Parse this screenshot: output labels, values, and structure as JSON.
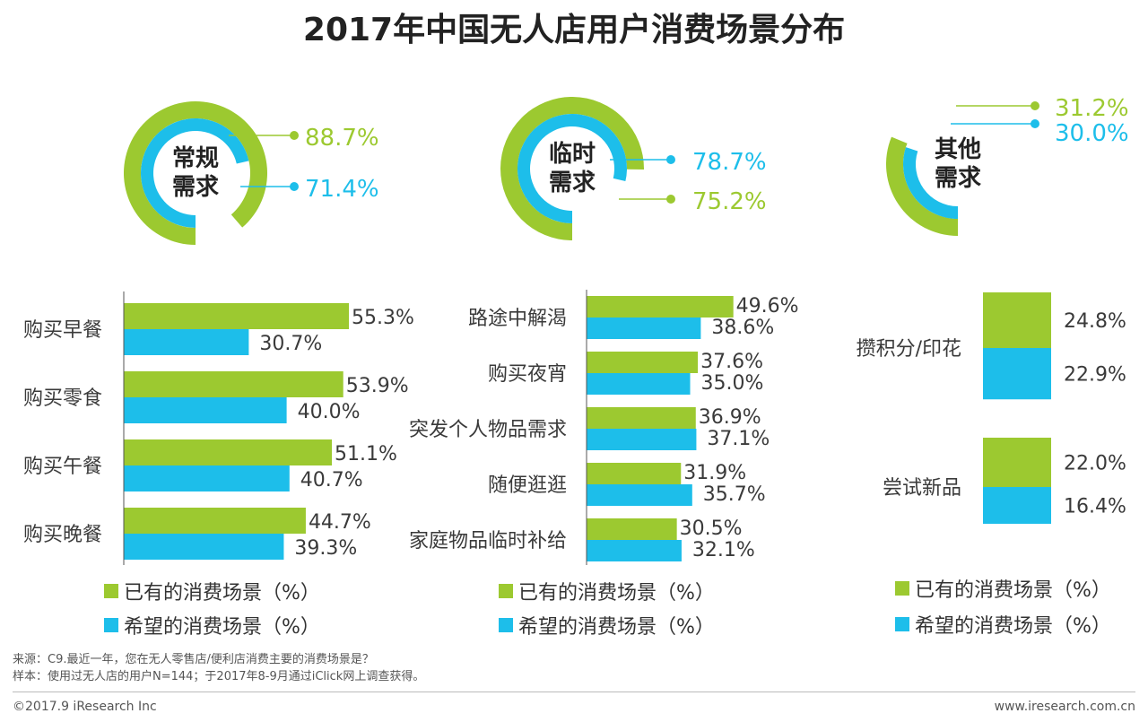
{
  "title": "2017年中国无人店用户消费场景分布",
  "colors": {
    "existing": "#9CC930",
    "desired": "#1DBEEA"
  },
  "donuts": [
    {
      "label_line1": "常规",
      "label_line2": "需求",
      "existing": 88.7,
      "desired": 71.4,
      "existing_label": "88.7%",
      "desired_label": "71.4%"
    },
    {
      "label_line1": "临时",
      "label_line2": "需求",
      "existing": 75.2,
      "desired": 78.7,
      "existing_label": "75.2%",
      "desired_label": "78.7%"
    },
    {
      "label_line1": "其他",
      "label_line2": "需求",
      "existing": 31.2,
      "desired": 30.0,
      "existing_label": "31.2%",
      "desired_label": "30.0%"
    }
  ],
  "chart_data": [
    {
      "type": "bar",
      "title": "常规需求",
      "categories": [
        "购买早餐",
        "购买零食",
        "购买午餐",
        "购买晚餐"
      ],
      "series": [
        {
          "name": "已有的消费场景（%）",
          "values": [
            55.3,
            53.9,
            51.1,
            44.7
          ]
        },
        {
          "name": "希望的消费场景（%）",
          "values": [
            30.7,
            40.0,
            40.7,
            39.3
          ]
        }
      ]
    },
    {
      "type": "bar",
      "title": "临时需求",
      "categories": [
        "路途中解渴",
        "购买夜宵",
        "突发个人物品需求",
        "随便逛逛",
        "家庭物品临时补给"
      ],
      "series": [
        {
          "name": "已有的消费场景（%）",
          "values": [
            49.6,
            37.6,
            36.9,
            31.9,
            30.5
          ]
        },
        {
          "name": "希望的消费场景（%）",
          "values": [
            38.6,
            35.0,
            37.1,
            35.7,
            32.1
          ]
        }
      ]
    },
    {
      "type": "bar",
      "title": "其他需求",
      "categories": [
        "攒积分/印花",
        "尝试新品"
      ],
      "series": [
        {
          "name": "已有的消费场景（%）",
          "values": [
            24.8,
            22.0
          ]
        },
        {
          "name": "希望的消费场景（%）",
          "values": [
            22.9,
            16.4
          ]
        }
      ]
    }
  ],
  "legend": {
    "existing": "已有的消费场景（%）",
    "desired": "希望的消费场景（%）"
  },
  "notes": {
    "source": "来源：C9.最近一年，您在无人零售店/便利店消费主要的消费场景是？",
    "sample": "样本：使用过无人店的用户N=144；于2017年8-9月通过iClick网上调查获得。"
  },
  "footer": {
    "copyright": "©2017.9 iResearch Inc",
    "url": "www.iresearch.com.cn"
  }
}
